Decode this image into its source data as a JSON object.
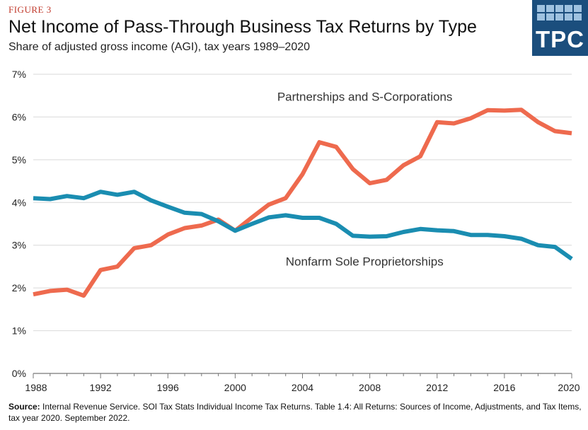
{
  "figure_label": "FIGURE 3",
  "title": "Net Income of Pass-Through Business Tax Returns by Type",
  "subtitle": "Share of adjusted gross income (AGI), tax years 1989–2020",
  "logo": {
    "text": "TPC",
    "bg_color": "#1b4e7d"
  },
  "source": {
    "label": "Source:",
    "text": "Internal Revenue Service. SOI Tax Stats Individual Income Tax Returns. Table 1.4: All Returns: Sources of Income, Adjustments, and Tax Items, tax year 2020. September 2022."
  },
  "chart_data": {
    "type": "line",
    "title": "Net Income of Pass-Through Business Tax Returns by Type",
    "subtitle": "Share of adjusted gross income (AGI), tax years 1989–2020",
    "xlabel": "",
    "ylabel": "",
    "xlim": [
      1988,
      2020
    ],
    "ylim": [
      0,
      7
    ],
    "x_ticks": [
      "1988",
      "1992",
      "1996",
      "2000",
      "2004",
      "2008",
      "2012",
      "2016",
      "2020"
    ],
    "y_ticks": [
      "0%",
      "1%",
      "2%",
      "3%",
      "4%",
      "5%",
      "6%",
      "7%"
    ],
    "grid": "horizontal",
    "x": [
      1988,
      1989,
      1990,
      1991,
      1992,
      1993,
      1994,
      1995,
      1996,
      1997,
      1998,
      1999,
      2000,
      2001,
      2002,
      2003,
      2004,
      2005,
      2006,
      2007,
      2008,
      2009,
      2010,
      2011,
      2012,
      2013,
      2014,
      2015,
      2016,
      2017,
      2018,
      2019,
      2020
    ],
    "series": [
      {
        "name": "Partnerships and S-Corporations",
        "color": "#ee6a4e",
        "values": [
          1.85,
          1.93,
          1.96,
          1.82,
          2.42,
          2.5,
          2.93,
          3.0,
          3.25,
          3.4,
          3.46,
          3.6,
          3.34,
          3.65,
          3.95,
          4.1,
          4.66,
          5.41,
          5.3,
          4.78,
          4.45,
          4.53,
          4.87,
          5.08,
          5.88,
          5.85,
          5.97,
          6.16,
          6.15,
          6.17,
          5.88,
          5.67,
          5.62
        ]
      },
      {
        "name": "Nonfarm Sole Proprietorships",
        "color": "#1a8db1",
        "values": [
          4.1,
          4.08,
          4.15,
          4.1,
          4.25,
          4.18,
          4.25,
          4.05,
          3.9,
          3.76,
          3.73,
          3.56,
          3.34,
          3.5,
          3.65,
          3.7,
          3.64,
          3.64,
          3.5,
          3.22,
          3.2,
          3.21,
          3.31,
          3.38,
          3.35,
          3.33,
          3.24,
          3.24,
          3.21,
          3.15,
          3.0,
          2.96,
          2.68
        ]
      }
    ],
    "annotations": [
      {
        "text": "Partnerships and S-Corporations",
        "x": 2002.5,
        "y": 6.38
      },
      {
        "text": "Nonfarm Sole Proprietorships",
        "x": 2003.0,
        "y": 2.52
      }
    ]
  }
}
